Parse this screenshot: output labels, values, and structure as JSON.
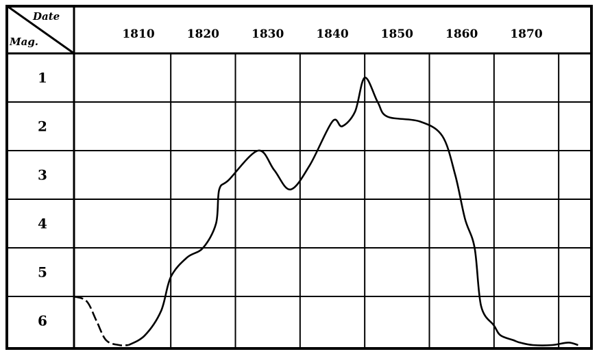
{
  "chart_data": {
    "type": "line",
    "title": "",
    "xlabel": "Date",
    "ylabel": "Mag.",
    "x_ticks": [
      1810,
      1820,
      1830,
      1840,
      1850,
      1860,
      1870
    ],
    "x_tick_labels": [
      "1810",
      "1820",
      "1830",
      "1840",
      "1850",
      "1860",
      "1870"
    ],
    "y_ticks": [
      1,
      2,
      3,
      4,
      5,
      6
    ],
    "y_tick_labels": [
      "1",
      "2",
      "3",
      "4",
      "5",
      "6"
    ],
    "xlim": [
      1800,
      1880
    ],
    "ylim": [
      0.5,
      6.5
    ],
    "y_inverted": true,
    "grid": true,
    "series": [
      {
        "name": "",
        "style": "dashed",
        "points": [
          [
            1800,
            5.5
          ],
          [
            1802,
            5.6
          ],
          [
            1803.5,
            6.0
          ],
          [
            1805,
            6.4
          ],
          [
            1807,
            6.5
          ],
          [
            1808.5,
            6.5
          ]
        ]
      },
      {
        "name": "",
        "style": "solid",
        "points": [
          [
            1808.5,
            6.5
          ],
          [
            1811,
            6.3
          ],
          [
            1813.5,
            5.8
          ],
          [
            1815,
            5.1
          ],
          [
            1817.5,
            4.7
          ],
          [
            1820,
            4.5
          ],
          [
            1822,
            4.0
          ],
          [
            1822.5,
            3.3
          ],
          [
            1824,
            3.1
          ],
          [
            1828.5,
            2.5
          ],
          [
            1831,
            2.9
          ],
          [
            1833.5,
            3.3
          ],
          [
            1836.5,
            2.8
          ],
          [
            1840,
            1.9
          ],
          [
            1841.5,
            2.0
          ],
          [
            1843.5,
            1.7
          ],
          [
            1845,
            1.0
          ],
          [
            1847,
            1.5
          ],
          [
            1848.5,
            1.8
          ],
          [
            1853.5,
            1.9
          ],
          [
            1857,
            2.2
          ],
          [
            1859,
            3.0
          ],
          [
            1860.5,
            3.9
          ],
          [
            1862,
            4.5
          ],
          [
            1863,
            5.7
          ],
          [
            1865,
            6.1
          ],
          [
            1866,
            6.3
          ],
          [
            1868,
            6.4
          ],
          [
            1869,
            6.45
          ],
          [
            1871,
            6.5
          ],
          [
            1874,
            6.5
          ],
          [
            1876.5,
            6.45
          ],
          [
            1878,
            6.5
          ]
        ]
      }
    ]
  }
}
